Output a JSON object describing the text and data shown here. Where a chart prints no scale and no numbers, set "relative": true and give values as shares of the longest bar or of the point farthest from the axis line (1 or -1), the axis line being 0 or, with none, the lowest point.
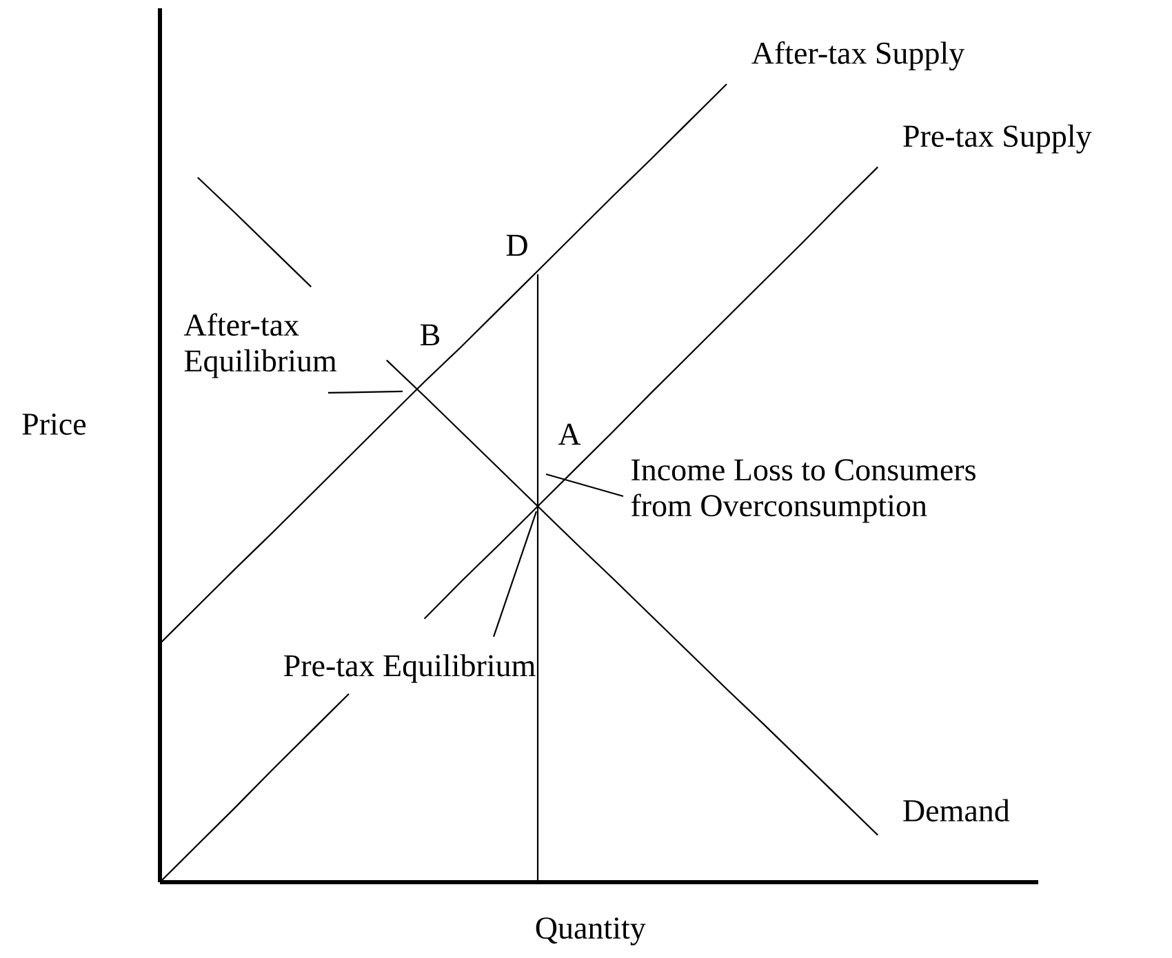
{
  "chart_data": {
    "type": "line",
    "relative": true,
    "xlabel": "Quantity",
    "ylabel": "Price",
    "marker": "none",
    "line_style": "solid",
    "categories": [
      null,
      null,
      null,
      null,
      null,
      null,
      null,
      null,
      null,
      null,
      null,
      null,
      null,
      null,
      null,
      null,
      null,
      null,
      null,
      null
    ],
    "series": [
      {
        "name": "After-tax Supply",
        "color": "#000000",
        "values": [
          0.299,
          0.346,
          0.393,
          0.439,
          0.486,
          0.533,
          0.58,
          0.627,
          0.672,
          0.719,
          0.766,
          0.813,
          0.86,
          0.906,
          0.953,
          1.0,
          null,
          null,
          null,
          null
        ]
      },
      {
        "name": "Pre-tax Supply",
        "color": "#000000",
        "values": [
          0,
          0.047,
          0.094,
          0.142,
          0.189,
          0.236,
          null,
          0.33,
          0.378,
          0.424,
          0.471,
          0.518,
          0.565,
          0.613,
          0.66,
          0.707,
          0.754,
          0.801,
          0.849,
          0.896
        ]
      },
      {
        "name": "Demand",
        "color": "#000000",
        "values": [
          null,
          0.883,
          0.838,
          0.792,
          0.746,
          null,
          0.654,
          0.609,
          0.563,
          0.517,
          0.471,
          0.425,
          0.38,
          0.334,
          0.288,
          0.242,
          0.197,
          0.151,
          0.105,
          0.059
        ]
      }
    ],
    "annotations": [
      "D",
      "B",
      "A",
      "After-tax Equilibrium",
      "Income Loss to Consumers from Overconsumption",
      "Pre-tax Equilibrium"
    ]
  }
}
